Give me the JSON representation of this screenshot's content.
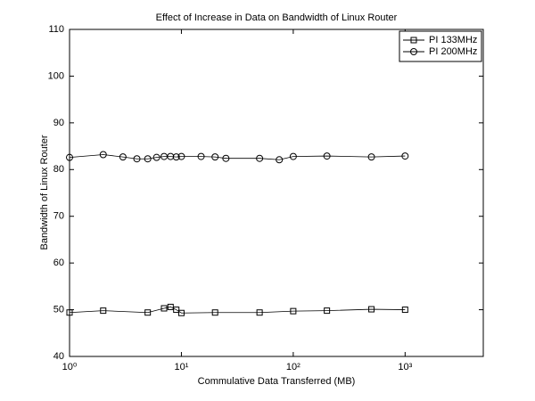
{
  "chart_data": {
    "type": "line",
    "title": "Effect of Increase in Data on Bandwidth of Linux Router",
    "x_label": "Commulative Data Transferred (MB)",
    "y_label": "Bandwidth of Linux Router",
    "x_scale": "log",
    "xlim": [
      1,
      5000
    ],
    "xticks": [
      {
        "value": 1,
        "label": "10⁰"
      },
      {
        "value": 10,
        "label": "10¹"
      },
      {
        "value": 100,
        "label": "10²"
      },
      {
        "value": 1000,
        "label": "10³"
      }
    ],
    "ylim": [
      40,
      110
    ],
    "yticks": [
      40,
      50,
      60,
      70,
      80,
      90,
      100,
      110
    ],
    "legend": "upper right",
    "series": [
      {
        "name": "PI 133MHz",
        "color": "#000000",
        "marker": "square",
        "x": [
          1,
          2,
          5,
          7,
          8,
          9,
          10,
          20,
          50,
          100,
          200,
          500,
          1000
        ],
        "values": [
          49.4,
          49.8,
          49.4,
          50.3,
          50.6,
          50.0,
          49.3,
          49.4,
          49.4,
          49.7,
          49.8,
          50.1,
          50.0
        ]
      },
      {
        "name": "PI 200MHz",
        "color": "#000000",
        "marker": "circle",
        "x": [
          1,
          2,
          3,
          4,
          5,
          6,
          7,
          8,
          9,
          10,
          15,
          20,
          25,
          50,
          75,
          100,
          200,
          500,
          1000
        ],
        "values": [
          82.6,
          83.2,
          82.7,
          82.3,
          82.3,
          82.6,
          82.8,
          82.8,
          82.7,
          82.8,
          82.8,
          82.7,
          82.4,
          82.4,
          82.1,
          82.8,
          82.9,
          82.7,
          82.9
        ]
      }
    ]
  }
}
